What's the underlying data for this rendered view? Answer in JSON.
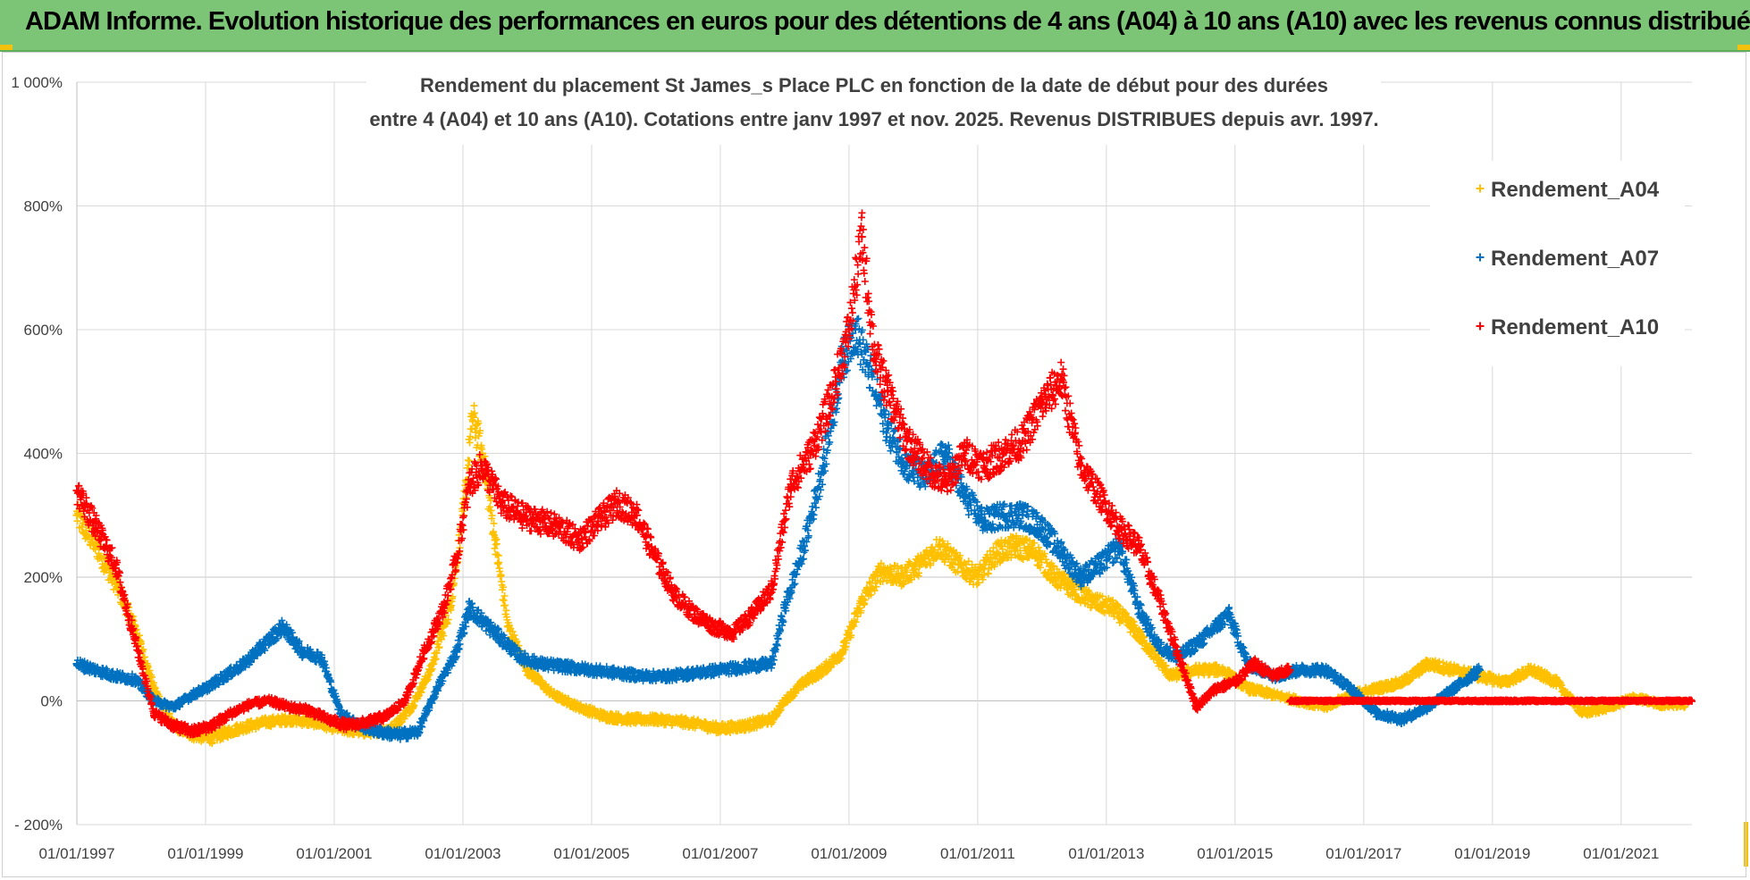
{
  "header": {
    "title": "ADAM Informe. Evolution historique des performances en euros pour des détentions de 4 ans (A04) à 10 ans (A10) avec les revenus connus distribués"
  },
  "chart_data": {
    "type": "scatter",
    "title_lines": [
      "Rendement du placement St James_s Place PLC en fonction de la date de début pour des durées",
      "entre 4 (A04) et 10 ans (A10).  Cotations entre janv 1997 et nov. 2025. Revenus DISTRIBUES depuis avr. 1997."
    ],
    "xlabel": "",
    "ylabel": "",
    "x_tick_labels": [
      "01/01/1997",
      "01/01/1999",
      "01/01/2001",
      "01/01/2003",
      "01/01/2005",
      "01/01/2007",
      "01/01/2009",
      "01/01/2011",
      "01/01/2013",
      "01/01/2015",
      "01/01/2017",
      "01/01/2019",
      "01/01/2021"
    ],
    "x_tick_years": [
      1997,
      1999,
      2001,
      2003,
      2005,
      2007,
      2009,
      2011,
      2013,
      2015,
      2017,
      2019,
      2021
    ],
    "xlim": [
      1997,
      2022.1
    ],
    "y_tick_labels": [
      "- 200%",
      "0%",
      "200%",
      "400%",
      "600%",
      "800%",
      "1 000%"
    ],
    "y_tick_values": [
      -200,
      0,
      200,
      400,
      600,
      800,
      1000
    ],
    "ylim": [
      -200,
      1000
    ],
    "grid": true,
    "legend_position": "top-right",
    "series": [
      {
        "name": "Rendement_A04",
        "color": "#ffc000",
        "marker": "+",
        "x": [
          1997.0,
          1997.3,
          1997.6,
          1997.9,
          1998.2,
          1998.5,
          1998.8,
          1999.1,
          1999.5,
          1999.9,
          2000.3,
          2000.7,
          2001.1,
          2001.5,
          2001.9,
          2002.2,
          2002.5,
          2002.8,
          2003.0,
          2003.15,
          2003.3,
          2003.5,
          2003.7,
          2004.0,
          2004.4,
          2004.8,
          2005.2,
          2005.6,
          2006.0,
          2006.5,
          2007.0,
          2007.4,
          2007.8,
          2008.0,
          2008.3,
          2008.6,
          2008.9,
          2009.2,
          2009.5,
          2009.8,
          2010.1,
          2010.4,
          2010.7,
          2011.0,
          2011.3,
          2011.6,
          2011.9,
          2012.2,
          2012.5,
          2012.8,
          2013.1,
          2013.4,
          2013.7,
          2014.0,
          2014.4,
          2014.8,
          2015.2,
          2015.6,
          2016.0,
          2016.4,
          2016.8,
          2017.2,
          2017.6,
          2018.0,
          2018.4,
          2018.8,
          2019.2,
          2019.6,
          2020.0,
          2020.4,
          2020.8,
          2021.2,
          2021.6,
          2022.0
        ],
        "y": [
          300,
          250,
          190,
          120,
          20,
          -40,
          -55,
          -60,
          -45,
          -35,
          -30,
          -35,
          -45,
          -50,
          -45,
          -10,
          50,
          150,
          300,
          460,
          400,
          260,
          120,
          50,
          10,
          -10,
          -25,
          -30,
          -30,
          -35,
          -45,
          -40,
          -30,
          0,
          30,
          50,
          80,
          160,
          210,
          200,
          220,
          250,
          220,
          200,
          240,
          250,
          240,
          200,
          180,
          160,
          150,
          120,
          80,
          40,
          50,
          50,
          20,
          10,
          0,
          -10,
          10,
          20,
          30,
          60,
          50,
          40,
          30,
          50,
          30,
          -20,
          -10,
          5,
          -5,
          -5
        ]
      },
      {
        "name": "Rendement_A07",
        "color": "#0070c0",
        "marker": "+",
        "x": [
          1997.0,
          1997.3,
          1997.6,
          1997.9,
          1998.2,
          1998.5,
          1998.8,
          1999.0,
          1999.3,
          1999.6,
          1999.9,
          2000.2,
          2000.5,
          2000.8,
          2001.1,
          2001.4,
          2001.7,
          2002.0,
          2002.3,
          2002.6,
          2002.9,
          2003.1,
          2003.3,
          2003.6,
          2003.9,
          2004.2,
          2004.6,
          2005.0,
          2005.4,
          2005.8,
          2006.2,
          2006.6,
          2007.0,
          2007.4,
          2007.8,
          2008.0,
          2008.3,
          2008.6,
          2008.9,
          2009.1,
          2009.3,
          2009.6,
          2009.9,
          2010.2,
          2010.5,
          2010.8,
          2011.1,
          2011.4,
          2011.7,
          2012.0,
          2012.3,
          2012.6,
          2012.9,
          2013.2,
          2013.5,
          2013.8,
          2014.1,
          2014.5,
          2014.9,
          2015.2,
          2015.6,
          2016.0,
          2016.4,
          2016.8,
          2017.2,
          2017.6,
          2018.0,
          2018.4,
          2018.8
        ],
        "y": [
          60,
          50,
          40,
          35,
          0,
          -10,
          10,
          20,
          40,
          60,
          90,
          120,
          80,
          70,
          -20,
          -40,
          -50,
          -55,
          -50,
          20,
          80,
          150,
          130,
          100,
          70,
          60,
          55,
          50,
          45,
          40,
          40,
          45,
          50,
          55,
          60,
          150,
          250,
          380,
          550,
          600,
          540,
          440,
          380,
          360,
          400,
          330,
          290,
          300,
          300,
          280,
          240,
          200,
          220,
          250,
          150,
          90,
          70,
          100,
          140,
          60,
          40,
          50,
          50,
          20,
          -20,
          -30,
          -10,
          20,
          50
        ]
      },
      {
        "name": "Rendement_A10",
        "color": "#ff0000",
        "marker": "+",
        "x": [
          1997.0,
          1997.3,
          1997.6,
          1997.9,
          1998.2,
          1998.5,
          1998.8,
          1999.1,
          1999.4,
          1999.7,
          2000.0,
          2000.3,
          2000.6,
          2000.9,
          2001.2,
          2001.5,
          2001.8,
          2002.1,
          2002.4,
          2002.7,
          2002.9,
          2003.1,
          2003.3,
          2003.6,
          2003.9,
          2004.2,
          2004.5,
          2004.8,
          2005.1,
          2005.4,
          2005.7,
          2006.0,
          2006.3,
          2006.6,
          2006.9,
          2007.2,
          2007.5,
          2007.8,
          2008.1,
          2008.4,
          2008.7,
          2009.0,
          2009.2,
          2009.4,
          2009.6,
          2009.9,
          2010.2,
          2010.5,
          2010.8,
          2011.1,
          2011.4,
          2011.7,
          2012.0,
          2012.3,
          2012.6,
          2012.9,
          2013.2,
          2013.5,
          2013.8,
          2014.1,
          2014.4,
          2014.7,
          2015.0,
          2015.3,
          2015.6,
          2015.85
        ],
        "y": [
          340,
          280,
          220,
          100,
          -20,
          -40,
          -50,
          -40,
          -20,
          -5,
          0,
          -10,
          -15,
          -30,
          -40,
          -35,
          -25,
          0,
          80,
          150,
          230,
          350,
          380,
          320,
          300,
          290,
          280,
          260,
          290,
          320,
          300,
          230,
          170,
          140,
          120,
          110,
          140,
          180,
          350,
          400,
          480,
          600,
          750,
          560,
          500,
          420,
          380,
          350,
          400,
          380,
          400,
          420,
          480,
          520,
          380,
          330,
          280,
          250,
          170,
          80,
          -10,
          20,
          30,
          60,
          40,
          50
        ]
      }
    ],
    "flat_segment": {
      "series": "Rendement_A10",
      "x_start": 2015.85,
      "x_end": 2022.1,
      "y": 0
    }
  }
}
